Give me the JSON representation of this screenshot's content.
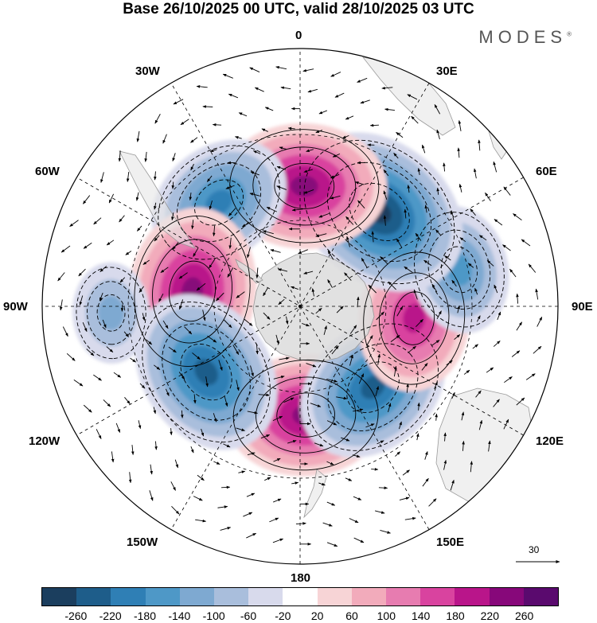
{
  "title": "Base 26/10/2025 00 UTC, valid 28/10/2025 03 UTC",
  "brand": "MODES",
  "brand_mark": "®",
  "longitude_labels": {
    "lon_0": "0",
    "lon_30e": "30E",
    "lon_60e": "60E",
    "lon_90e": "90E",
    "lon_120e": "120E",
    "lon_150e": "150E",
    "lon_180": "180",
    "lon_150w": "150W",
    "lon_120w": "120W",
    "lon_90w": "90W",
    "lon_60w": "60W",
    "lon_30w": "30W"
  },
  "reference_vector": {
    "label": "30"
  },
  "colorbar": {
    "colors": [
      "#1b3e5e",
      "#1e5d8a",
      "#2f7fb5",
      "#4e98c7",
      "#7ea9d1",
      "#a9bedc",
      "#d8daec",
      "#ffffff",
      "#f7d4d6",
      "#f2abbb",
      "#e77cb0",
      "#d9439f",
      "#b9158a",
      "#87087a",
      "#5a0a6e"
    ],
    "tick_labels": [
      "-260",
      "-220",
      "-180",
      "-140",
      "-100",
      "-60",
      "-20",
      "20",
      "60",
      "100",
      "140",
      "180",
      "220",
      "260"
    ]
  },
  "anomaly_centers": [
    {
      "name": "ridge-0",
      "lon": 3,
      "lat": -52,
      "sign": "positive",
      "value": 230
    },
    {
      "name": "trough-40e",
      "lon": 42,
      "lat": -52,
      "sign": "negative",
      "value": -230
    },
    {
      "name": "ridge-80e",
      "lon": 84,
      "lat": -50,
      "sign": "positive",
      "value": 200
    },
    {
      "name": "trough-105e",
      "lon": 103,
      "lat": -33,
      "sign": "negative",
      "value": -160
    },
    {
      "name": "trough-140e",
      "lon": 140,
      "lat": -47,
      "sign": "negative",
      "value": -280
    },
    {
      "name": "ridge-178e",
      "lon": 178,
      "lat": -48,
      "sign": "positive",
      "value": 240
    },
    {
      "name": "trough-140w",
      "lon": -142,
      "lat": -44,
      "sign": "negative",
      "value": -200
    },
    {
      "name": "ridge-98w",
      "lon": -98,
      "lat": -52,
      "sign": "positive",
      "value": 245
    },
    {
      "name": "trough-55w",
      "lon": -55,
      "lat": -50,
      "sign": "negative",
      "value": -245
    },
    {
      "name": "low-88w",
      "lon": -88,
      "lat": -24,
      "sign": "negative",
      "value": -100
    }
  ]
}
